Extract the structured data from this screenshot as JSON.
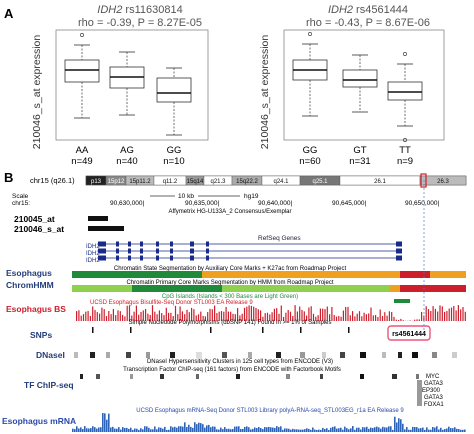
{
  "panel_a": {
    "letter": "A",
    "ylabel": "210046_s_at  expression",
    "left": {
      "gene": "IDH2",
      "snp": " rs11630814",
      "stats": "rho = -0.39, P = 8.27E-05",
      "groups": [
        {
          "label": "AA",
          "n": "n=49"
        },
        {
          "label": "AG",
          "n": "n=40"
        },
        {
          "label": "GG",
          "n": "n=10"
        }
      ]
    },
    "right": {
      "gene": "IDH2",
      "snp": " rs4561444",
      "stats": "rho = -0.43, P = 8.67E-06",
      "groups": [
        {
          "label": "GG",
          "n": "n=60"
        },
        {
          "label": "GT",
          "n": "n=31"
        },
        {
          "label": "TT",
          "n": "n=9"
        }
      ]
    }
  },
  "chart_data": [
    {
      "type": "box",
      "title": "IDH2 rs11630814",
      "ylabel": "210046_s_at expression",
      "categories": [
        "AA",
        "AG",
        "GG"
      ],
      "boxes": [
        {
          "whisker_low": 0.22,
          "q1": 0.58,
          "median": 0.7,
          "q3": 0.8,
          "whisker_high": 0.95,
          "outliers": [
            1.05
          ]
        },
        {
          "whisker_low": 0.25,
          "q1": 0.52,
          "median": 0.63,
          "q3": 0.73,
          "whisker_high": 0.88,
          "outliers": []
        },
        {
          "whisker_low": 0.05,
          "q1": 0.38,
          "median": 0.47,
          "q3": 0.62,
          "whisker_high": 0.72,
          "outliers": []
        }
      ]
    },
    {
      "type": "box",
      "title": "IDH2 rs4561444",
      "ylabel": "210046_s_at expression",
      "categories": [
        "GG",
        "GT",
        "TT"
      ],
      "boxes": [
        {
          "whisker_low": 0.24,
          "q1": 0.6,
          "median": 0.7,
          "q3": 0.8,
          "whisker_high": 0.96,
          "outliers": [
            1.06
          ]
        },
        {
          "whisker_low": 0.28,
          "q1": 0.53,
          "median": 0.6,
          "q3": 0.7,
          "whisker_high": 0.85,
          "outliers": []
        },
        {
          "whisker_low": 0.14,
          "q1": 0.4,
          "median": 0.48,
          "q3": 0.58,
          "whisker_high": 0.76,
          "outliers": [
            0.86,
            0.0
          ]
        }
      ]
    }
  ],
  "panel_b": {
    "letter": "B",
    "chrom": "chr15 (q26.1)",
    "bands": [
      "p13",
      "15p12",
      "15p11.2",
      "q11.2",
      "15q14",
      "q21.3",
      "15q22.2",
      "q24.1",
      "q25.1",
      "26.1",
      "26.3"
    ],
    "scale_label": "Scale",
    "scale_value": "10 kb",
    "assembly": "hg19",
    "coord_chr": "chr15:",
    "coords": [
      "90,630,000|",
      "90,635,000|",
      "90,640,000|",
      "90,645,000|",
      "90,650,000|"
    ],
    "affy_label": "Affymetrix HG-U133A_2 Consensus/Exemplar",
    "probe1": "210045_at",
    "probe2": "210046_s_at",
    "refseq_label": "RefSeq Genes",
    "gene_labels": [
      "IDH2",
      "IDH2",
      "IDH2"
    ],
    "track_labels": {
      "esophagus": "Esophagus",
      "chromhmm": "ChromHMM",
      "esoph_bs": "Esophagus BS",
      "snps": "SNPs",
      "dnase": "DNaseI",
      "tfchip": "TF ChIP-seq",
      "mrna": "Esophagus mRNA"
    },
    "chromhmm_track1": "Chromatin State Segmentation by Auxiliary Core Marks + K27ac from Roadmap Project",
    "chromhmm_track2": "Chromatin Primary Core Marks Segmentation by HMM from Roadmap Project",
    "cpg_label": "CpG Islands (Islands < 300 Bases are Light Green)",
    "bs_label": "UCSD Esophagus Bisulfite-Seq Donor STL003 EA Release 9",
    "snp_label": "Simple Nucleotide Polymorphisms (dbSNP 141) Found in >= 1% of Samples",
    "snp_highlight": "rs4561444",
    "dnase_label": "DNaseI Hypersensitivity Clusters in 125 cell types from ENCODE (V3)",
    "tf_label": "Transcription Factor ChIP-seq (161 factors) from ENCODE with Factorbook Motifs",
    "tf_factors": [
      "MYC",
      "GATA3",
      "EP300",
      "GATA3",
      "FOXA1"
    ],
    "mrna_label": "UCSD Esophagus mRNA-Seq Donor STL003 Library polyA-RNA-seq_STL003EG_r1a EA Release 9",
    "colors": {
      "red": "#cc1f2b",
      "orange": "#f0a020",
      "green": "#1f8a3a",
      "lightgreen": "#8fd14f",
      "blue": "#2a4aa8",
      "mrna": "#2e64b8",
      "highlight": "#e8577a",
      "box_blue": "#2d4a8a"
    }
  }
}
